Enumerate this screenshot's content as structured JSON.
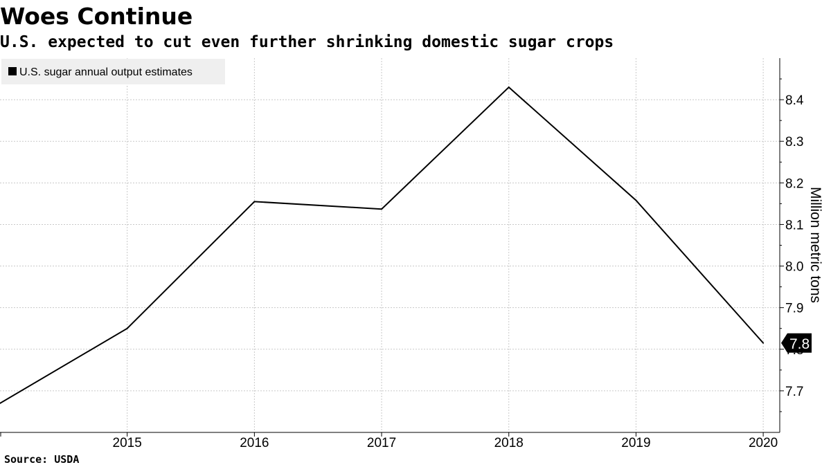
{
  "header": {
    "title": "Woes Continue",
    "subtitle": "U.S. expected to cut even further shrinking domestic sugar crops"
  },
  "footer": {
    "source": "Source: USDA"
  },
  "colors": {
    "line": "#000000",
    "grid": "#c8c8c8",
    "legend_bg": "#efefef",
    "last_value_bg": "#000000"
  },
  "chart_data": {
    "type": "line",
    "title": "Woes Continue",
    "subtitle": "U.S. expected to cut even further shrinking domestic sugar crops",
    "xlabel": "",
    "ylabel": "Million metric tons",
    "x_ticks": [
      "2015",
      "2016",
      "2017",
      "2018",
      "2019",
      "2020"
    ],
    "y_ticks": [
      7.7,
      7.8,
      7.9,
      8.0,
      8.1,
      8.2,
      8.3,
      8.4
    ],
    "y_tick_labels": [
      "7.7",
      "7.8",
      "7.9",
      "8.0",
      "8.1",
      "8.2",
      "8.3",
      "8.4"
    ],
    "xlim": [
      2014.0,
      2020.13
    ],
    "ylim": [
      7.6,
      8.5
    ],
    "y_axis_position": "right",
    "grid": true,
    "legend_position": "top-left",
    "last_value_label": "7.8",
    "series": [
      {
        "name": "U.S. sugar annual output estimates",
        "color": "#000000",
        "x": [
          2014,
          2015,
          2016,
          2017,
          2018,
          2019,
          2020
        ],
        "values": [
          7.67,
          7.85,
          8.155,
          8.137,
          8.43,
          8.158,
          7.815
        ]
      }
    ]
  }
}
